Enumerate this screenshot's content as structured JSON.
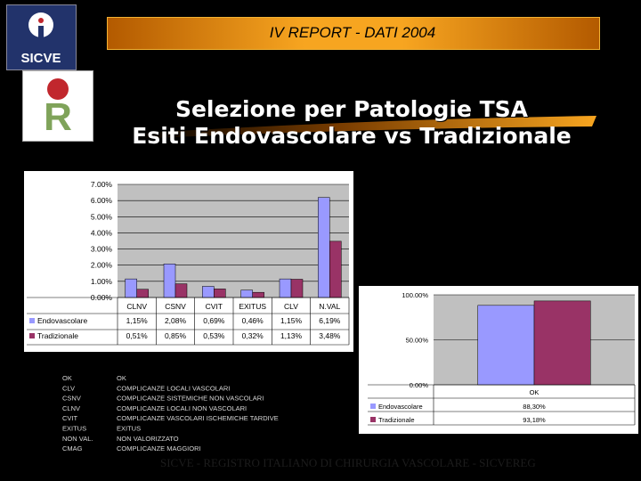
{
  "header": {
    "report_title": "IV REPORT - DATI 2004",
    "logo_text": "SICVE",
    "logo_r_letter": "R"
  },
  "title": {
    "line1": "Selezione per Patologie TSA",
    "line2": "Esiti Endovascolare vs Tradizionale"
  },
  "colors": {
    "endovascolare": "#9999ff",
    "tradizionale": "#993366",
    "plot_bg": "#c0c0c0",
    "band": "#f7a520"
  },
  "chart_data": [
    {
      "type": "bar",
      "categories": [
        "CLNV",
        "CSNV",
        "CVIT",
        "EXITUS",
        "CLV",
        "N.VAL"
      ],
      "series": [
        {
          "name": "Endovascolare",
          "values": [
            1.15,
            2.08,
            0.69,
            0.46,
            1.15,
            6.19
          ],
          "labels": [
            "1,15%",
            "2,08%",
            "0,69%",
            "0,46%",
            "1,15%",
            "6,19%"
          ]
        },
        {
          "name": "Tradizionale",
          "values": [
            0.51,
            0.85,
            0.53,
            0.32,
            1.13,
            3.48
          ],
          "labels": [
            "0,51%",
            "0,85%",
            "0,53%",
            "0,32%",
            "1,13%",
            "3,48%"
          ]
        }
      ],
      "ylim": [
        0,
        7
      ],
      "yticks": [
        "0.00%",
        "1.00%",
        "2.00%",
        "3.00%",
        "4.00%",
        "5.00%",
        "6.00%",
        "7.00%"
      ],
      "grid": true,
      "legend": "data-table"
    },
    {
      "type": "bar",
      "categories": [
        "OK"
      ],
      "series": [
        {
          "name": "Endovascolare",
          "values": [
            88.3
          ],
          "labels": [
            "88,30%"
          ]
        },
        {
          "name": "Tradizionale",
          "values": [
            93.18
          ],
          "labels": [
            "93,18%"
          ]
        }
      ],
      "ylim": [
        0,
        100
      ],
      "yticks": [
        "0.00%",
        "50.00%",
        "100.00%"
      ],
      "grid": true,
      "legend": "data-table"
    }
  ],
  "legend_table": [
    {
      "code": "OK",
      "desc": "OK"
    },
    {
      "code": "CLV",
      "desc": "COMPLICANZE LOCALI VASCOLARI"
    },
    {
      "code": "CSNV",
      "desc": "COMPLICANZE SISTEMICHE NON VASCOLARI"
    },
    {
      "code": "CLNV",
      "desc": "COMPLICANZE LOCALI NON VASCOLARI"
    },
    {
      "code": "CVIT",
      "desc": "COMPLICANZE VASCOLARI ISCHEMICHE TARDIVE"
    },
    {
      "code": "EXITUS",
      "desc": "EXITUS"
    },
    {
      "code": "NON VAL.",
      "desc": "NON VALORIZZATO"
    },
    {
      "code": "CMAG",
      "desc": "COMPLICANZE MAGGIORI"
    }
  ],
  "footer": "SICVE - REGISTRO ITALIANO DI CHIRURGIA VASCOLARE - SICVEREG"
}
